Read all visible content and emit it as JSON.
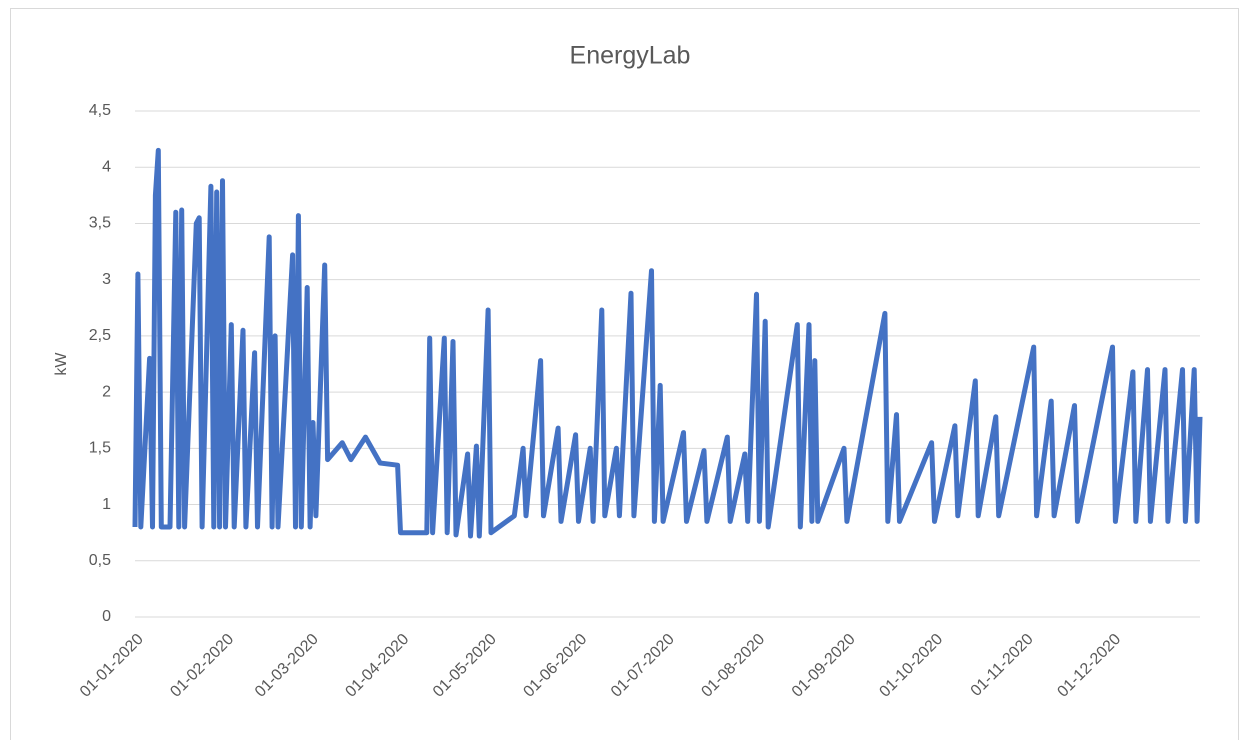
{
  "chart_data": {
    "type": "line",
    "title": "EnergyLab",
    "y_label": "kW",
    "x": [
      "01-01-2020",
      "02-01-2020",
      "03-01-2020",
      "06-01-2020",
      "07-01-2020",
      "08-01-2020",
      "09-01-2020",
      "10-01-2020",
      "13-01-2020",
      "15-01-2020",
      "16-01-2020",
      "17-01-2020",
      "18-01-2020",
      "22-01-2020",
      "23-01-2020",
      "24-01-2020",
      "27-01-2020",
      "28-01-2020",
      "29-01-2020",
      "30-01-2020",
      "31-01-2020",
      "01-02-2020",
      "03-02-2020",
      "04-02-2020",
      "07-02-2020",
      "08-02-2020",
      "11-02-2020",
      "12-02-2020",
      "16-02-2020",
      "17-02-2020",
      "18-02-2020",
      "19-02-2020",
      "24-02-2020",
      "25-02-2020",
      "26-02-2020",
      "27-02-2020",
      "29-02-2020",
      "01-03-2020",
      "02-03-2020",
      "03-03-2020",
      "06-03-2020",
      "07-03-2020",
      "12-03-2020",
      "15-03-2020",
      "20-03-2020",
      "25-03-2020",
      "31-03-2020",
      "01-04-2020",
      "10-04-2020",
      "11-04-2020",
      "12-04-2020",
      "16-04-2020",
      "17-04-2020",
      "19-04-2020",
      "20-04-2020",
      "24-04-2020",
      "25-04-2020",
      "27-04-2020",
      "28-04-2020",
      "01-05-2020",
      "02-05-2020",
      "10-05-2020",
      "13-05-2020",
      "14-05-2020",
      "19-05-2020",
      "20-05-2020",
      "25-05-2020",
      "26-05-2020",
      "31-05-2020",
      "01-06-2020",
      "05-06-2020",
      "06-06-2020",
      "09-06-2020",
      "10-06-2020",
      "14-06-2020",
      "15-06-2020",
      "19-06-2020",
      "20-06-2020",
      "26-06-2020",
      "27-06-2020",
      "29-06-2020",
      "30-06-2020",
      "07-07-2020",
      "08-07-2020",
      "14-07-2020",
      "15-07-2020",
      "22-07-2020",
      "23-07-2020",
      "28-07-2020",
      "29-07-2020",
      "01-08-2020",
      "02-08-2020",
      "04-08-2020",
      "05-08-2020",
      "15-08-2020",
      "16-08-2020",
      "19-08-2020",
      "20-08-2020",
      "21-08-2020",
      "22-08-2020",
      "31-08-2020",
      "01-09-2020",
      "14-09-2020",
      "15-09-2020",
      "18-09-2020",
      "19-09-2020",
      "30-09-2020",
      "01-10-2020",
      "08-10-2020",
      "09-10-2020",
      "15-10-2020",
      "16-10-2020",
      "22-10-2020",
      "23-10-2020",
      "04-11-2020",
      "05-11-2020",
      "10-11-2020",
      "11-11-2020",
      "18-11-2020",
      "19-11-2020",
      "01-12-2020",
      "02-12-2020",
      "08-12-2020",
      "09-12-2020",
      "13-12-2020",
      "14-12-2020",
      "19-12-2020",
      "20-12-2020",
      "25-12-2020",
      "26-12-2020",
      "29-12-2020",
      "30-12-2020",
      "31-12-2020"
    ],
    "series": [
      {
        "color": "#4472c4",
        "values": [
          0.8,
          3.05,
          0.8,
          2.3,
          0.8,
          3.75,
          4.15,
          0.8,
          0.8,
          3.6,
          0.8,
          3.62,
          0.8,
          3.5,
          3.55,
          0.8,
          3.83,
          0.8,
          3.78,
          0.8,
          3.88,
          0.8,
          2.6,
          0.8,
          2.55,
          0.8,
          2.35,
          0.8,
          3.38,
          0.8,
          2.5,
          0.8,
          3.22,
          0.8,
          3.57,
          0.8,
          2.93,
          0.8,
          1.73,
          0.9,
          3.13,
          1.4,
          1.55,
          1.4,
          1.6,
          1.37,
          1.35,
          0.75,
          0.75,
          2.48,
          0.75,
          2.48,
          0.75,
          2.45,
          0.73,
          1.45,
          0.72,
          1.52,
          0.72,
          2.73,
          0.75,
          0.9,
          1.5,
          0.9,
          2.28,
          0.9,
          1.68,
          0.85,
          1.62,
          0.85,
          1.5,
          0.85,
          2.73,
          0.9,
          1.5,
          0.9,
          2.88,
          0.9,
          3.08,
          0.85,
          2.06,
          0.85,
          1.64,
          0.85,
          1.48,
          0.85,
          1.6,
          0.85,
          1.45,
          0.85,
          2.87,
          0.85,
          2.63,
          0.8,
          2.6,
          0.8,
          2.6,
          0.85,
          2.28,
          0.85,
          1.5,
          0.85,
          2.7,
          0.85,
          1.8,
          0.85,
          1.55,
          0.85,
          1.7,
          0.9,
          2.1,
          0.9,
          1.78,
          0.9,
          2.4,
          0.9,
          1.92,
          0.9,
          1.88,
          0.85,
          2.4,
          0.85,
          2.18,
          0.85,
          2.2,
          0.85,
          2.2,
          0.85,
          2.2,
          0.85,
          2.2,
          0.85,
          1.78
        ]
      }
    ],
    "xlim": [
      "01-01-2020",
      "31-12-2020"
    ],
    "xticks": [
      "01-01-2020",
      "01-02-2020",
      "01-03-2020",
      "01-04-2020",
      "01-05-2020",
      "01-06-2020",
      "01-07-2020",
      "01-08-2020",
      "01-09-2020",
      "01-10-2020",
      "01-11-2020",
      "01-12-2020"
    ],
    "ylim": [
      0,
      4.5
    ],
    "yticks": [
      0,
      {
        "value": 0.5,
        "label": "0,5"
      },
      1,
      {
        "value": 1.5,
        "label": "1,5"
      },
      2,
      {
        "value": 2.5,
        "label": "2,5"
      },
      3,
      {
        "value": 3.5,
        "label": "3,5"
      },
      4,
      {
        "value": 4.5,
        "label": "4,5"
      }
    ],
    "grid": true
  }
}
